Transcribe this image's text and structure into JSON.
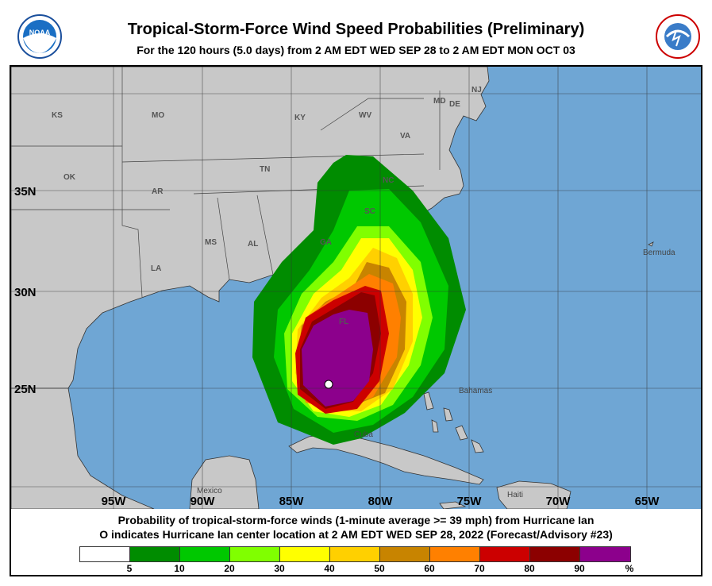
{
  "header": {
    "title": "Tropical-Storm-Force Wind Speed Probabilities (Preliminary)",
    "subtitle": "For the 120 hours (5.0 days) from 2 AM EDT WED SEP 28 to 2 AM EDT MON OCT 03",
    "left_logo": "NOAA",
    "right_logo": "NATIONAL WEATHER SERVICE"
  },
  "map": {
    "colors": {
      "ocean": "#6fa6d4",
      "land": "#c8c8c8",
      "storm_center": "#ffffff"
    },
    "lon_labels": [
      "95W",
      "90W",
      "85W",
      "80W",
      "75W",
      "70W",
      "65W"
    ],
    "lat_labels": [
      "35N",
      "30N",
      "25N"
    ],
    "state_labels": [
      "KS",
      "MO",
      "KY",
      "WV",
      "VA",
      "MD",
      "DE",
      "NJ",
      "OK",
      "AR",
      "TN",
      "NC",
      "SC",
      "GA",
      "MS",
      "AL",
      "LA",
      "FL"
    ],
    "place_labels": [
      "Bermuda",
      "Bahamas",
      "Cuba",
      "Mexico",
      "Haiti"
    ]
  },
  "caption": {
    "line1": "Probability of tropical-storm-force winds (1-minute average >= 39 mph) from Hurricane Ian",
    "line2": "O indicates Hurricane Ian center location at 2 AM EDT WED SEP 28, 2022 (Forecast/Advisory #23)"
  },
  "legend": {
    "colors": [
      "#ffffff",
      "#008c00",
      "#00c800",
      "#80ff00",
      "#ffff00",
      "#ffd000",
      "#c88400",
      "#ff8000",
      "#cc0000",
      "#8c0000",
      "#8c008c"
    ],
    "ticks": [
      "5",
      "10",
      "20",
      "30",
      "40",
      "50",
      "60",
      "70",
      "80",
      "90",
      "%"
    ]
  }
}
